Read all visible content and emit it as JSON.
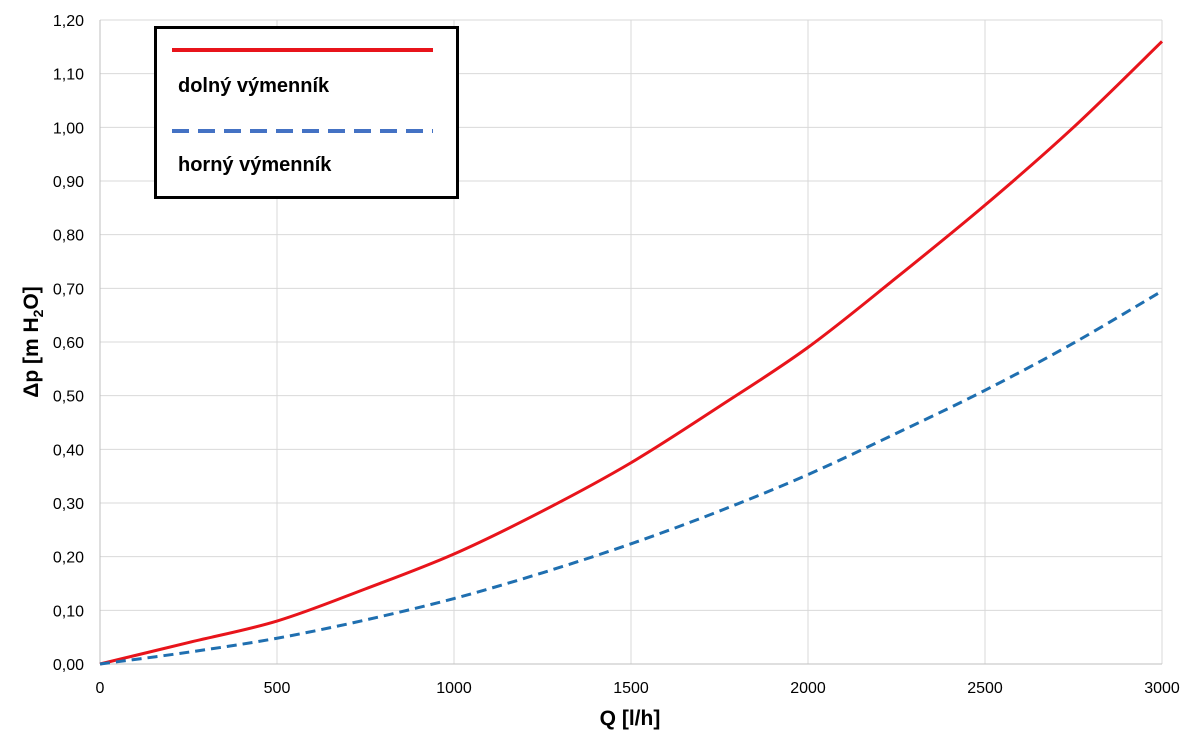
{
  "chart_data": {
    "type": "line",
    "xlabel": "Q [l/h]",
    "ylabel": "Δp [m H",
    "ylabel_sub": "2",
    "ylabel_tail": "O]",
    "xlim": [
      0,
      3000
    ],
    "ylim": [
      0,
      1.2
    ],
    "x_ticks": [
      0,
      500,
      1000,
      1500,
      2000,
      2500,
      3000
    ],
    "x_tick_labels": [
      "0",
      "500",
      "1000",
      "1500",
      "2000",
      "2500",
      "3000"
    ],
    "y_ticks": [
      0,
      0.1,
      0.2,
      0.3,
      0.4,
      0.5,
      0.6,
      0.7,
      0.8,
      0.9,
      1.0,
      1.1,
      1.2
    ],
    "y_tick_labels": [
      "0,00",
      "0,10",
      "0,20",
      "0,30",
      "0,40",
      "0,50",
      "0,60",
      "0,70",
      "0,80",
      "0,90",
      "1,00",
      "1,10",
      "1,20"
    ],
    "grid": true,
    "legend_position": "top-left",
    "series": [
      {
        "name": "dolný výmenník",
        "color": "#e8141b",
        "style": "solid",
        "legend_color": "#e8141b",
        "x": [
          0,
          250,
          500,
          750,
          1000,
          1250,
          1500,
          1750,
          2000,
          2250,
          2500,
          2750,
          3000
        ],
        "y": [
          0,
          0.04,
          0.08,
          0.14,
          0.205,
          0.285,
          0.375,
          0.48,
          0.59,
          0.72,
          0.855,
          1.0,
          1.16
        ]
      },
      {
        "name": "horný výmenník",
        "color": "#1f6fb0",
        "style": "dashed",
        "legend_color": "#4472c4",
        "x": [
          0,
          250,
          500,
          750,
          1000,
          1250,
          1500,
          1750,
          2000,
          2250,
          2500,
          2750,
          3000
        ],
        "y": [
          0,
          0.022,
          0.048,
          0.082,
          0.122,
          0.17,
          0.224,
          0.285,
          0.353,
          0.43,
          0.51,
          0.598,
          0.695
        ]
      }
    ]
  }
}
